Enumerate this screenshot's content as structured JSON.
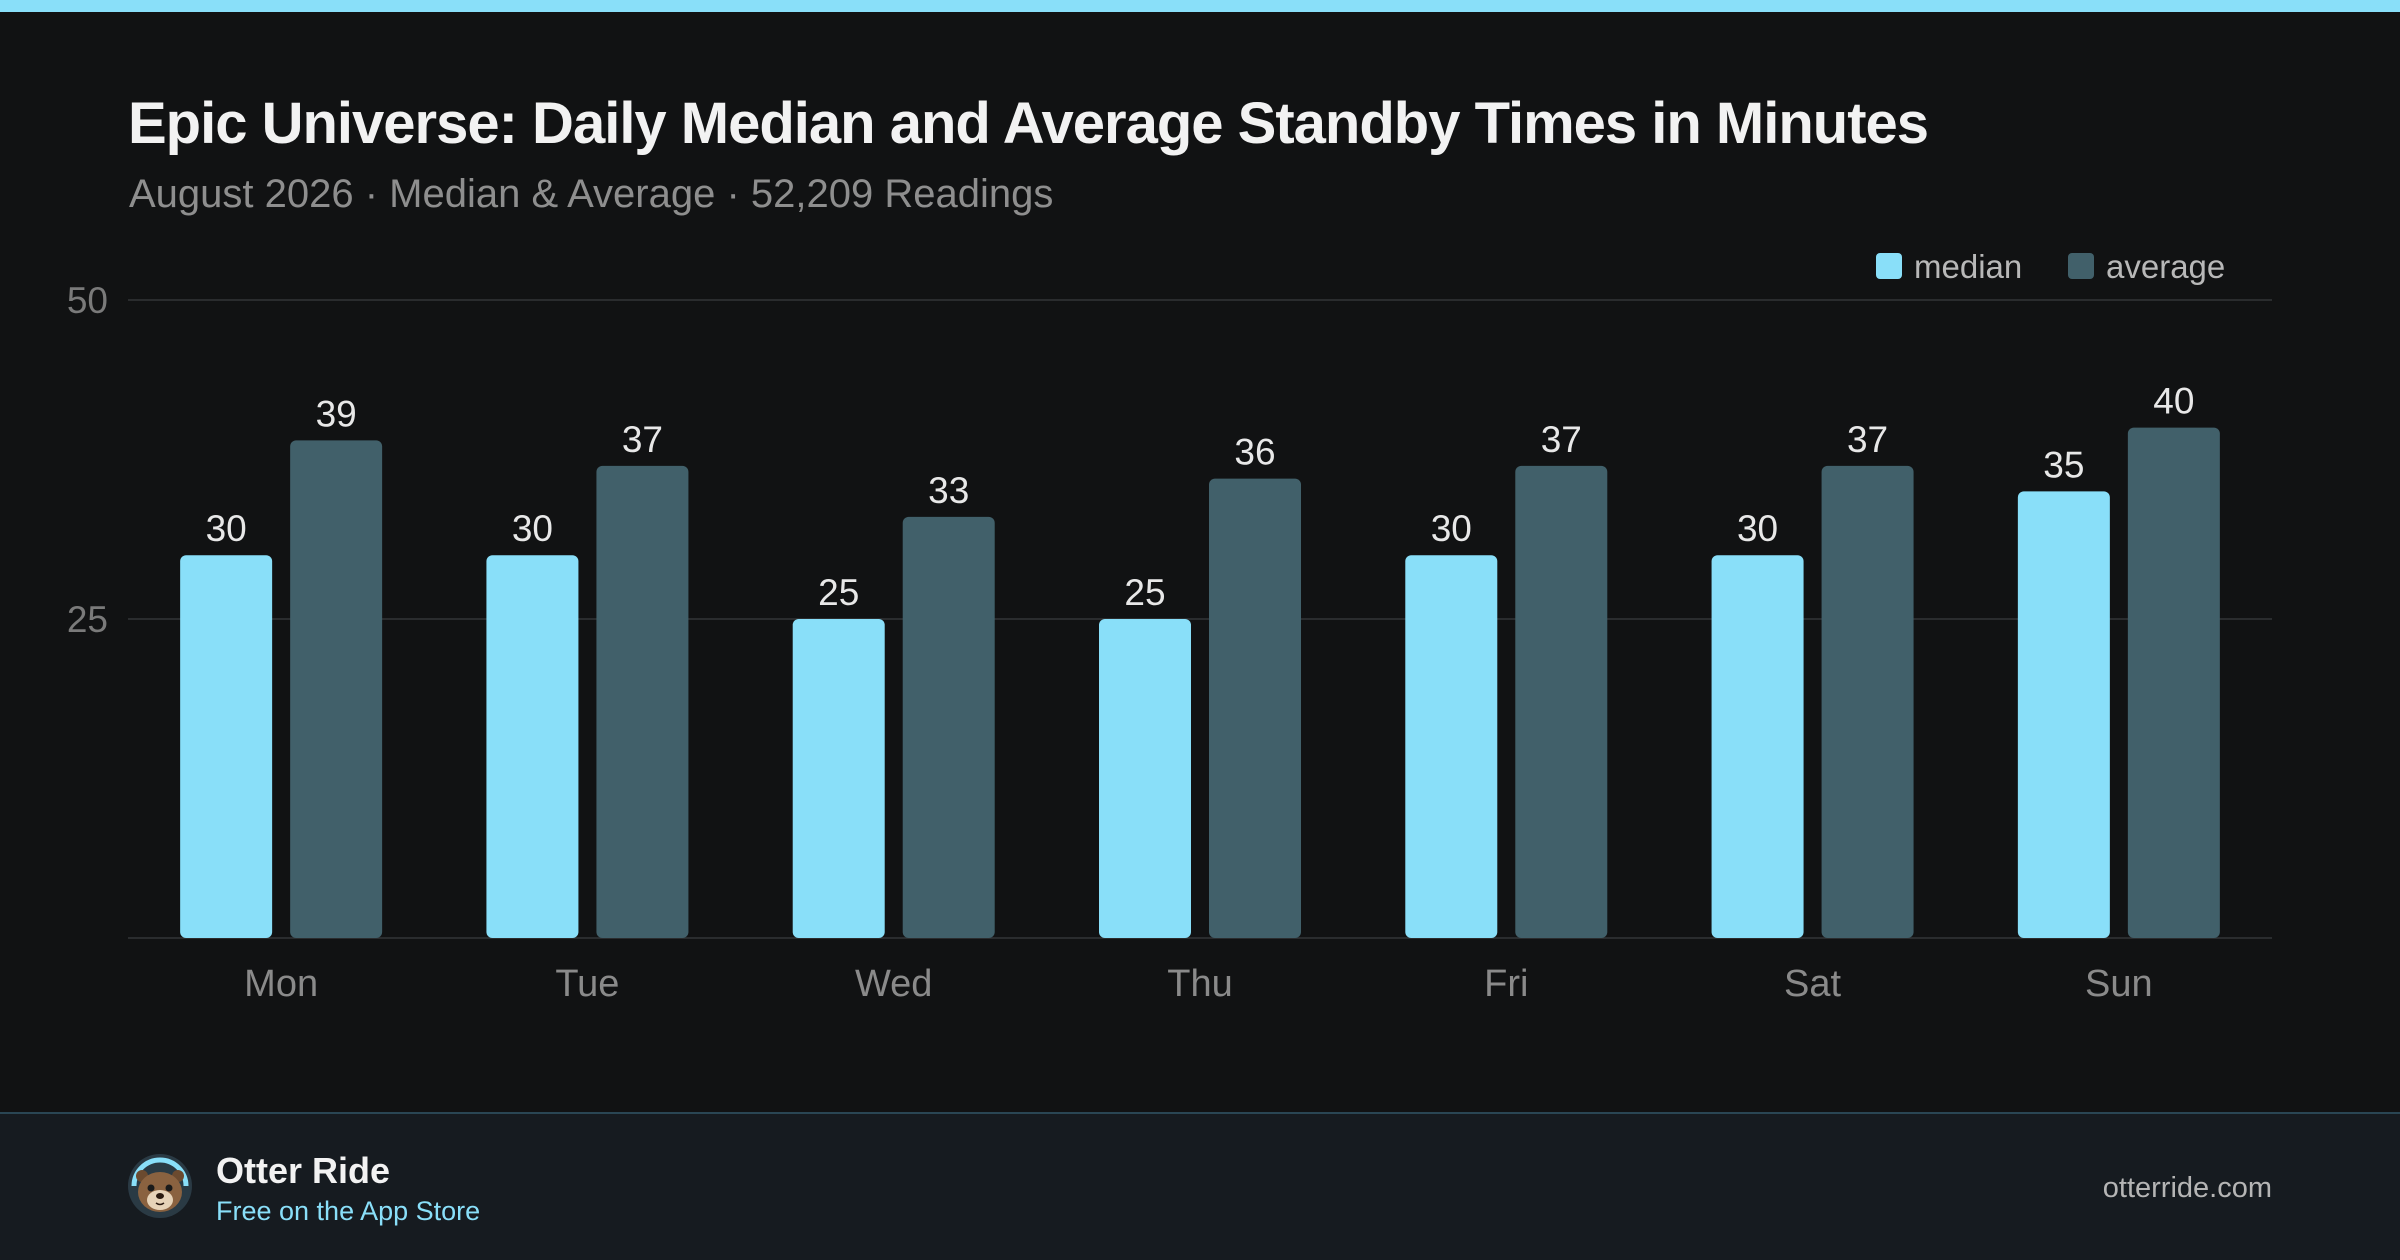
{
  "chart_data": {
    "type": "bar",
    "title": "Epic Universe: Daily Median and Average Standby Times in Minutes",
    "subtitle": "August 2026 · Median & Average · 52,209 Readings",
    "categories": [
      "Mon",
      "Tue",
      "Wed",
      "Thu",
      "Fri",
      "Sat",
      "Sun"
    ],
    "series": [
      {
        "name": "median",
        "values": [
          30,
          30,
          25,
          25,
          30,
          30,
          35
        ],
        "color": "#89dff9"
      },
      {
        "name": "average",
        "values": [
          39,
          37,
          33,
          36,
          37,
          37,
          40
        ],
        "color": "#41606a"
      }
    ],
    "ylim": [
      0,
      50
    ],
    "yticks": [
      25,
      50
    ],
    "grid": true,
    "legend_position": "top-right",
    "data_labels": true
  },
  "colors": {
    "accent": "#89dff9",
    "background": "#111213",
    "footer_background": "#161b20"
  },
  "footer": {
    "brand_name": "Otter Ride",
    "tagline": "Free on the App Store",
    "website": "otterride.com",
    "avatar_icon": "otter-icon"
  }
}
